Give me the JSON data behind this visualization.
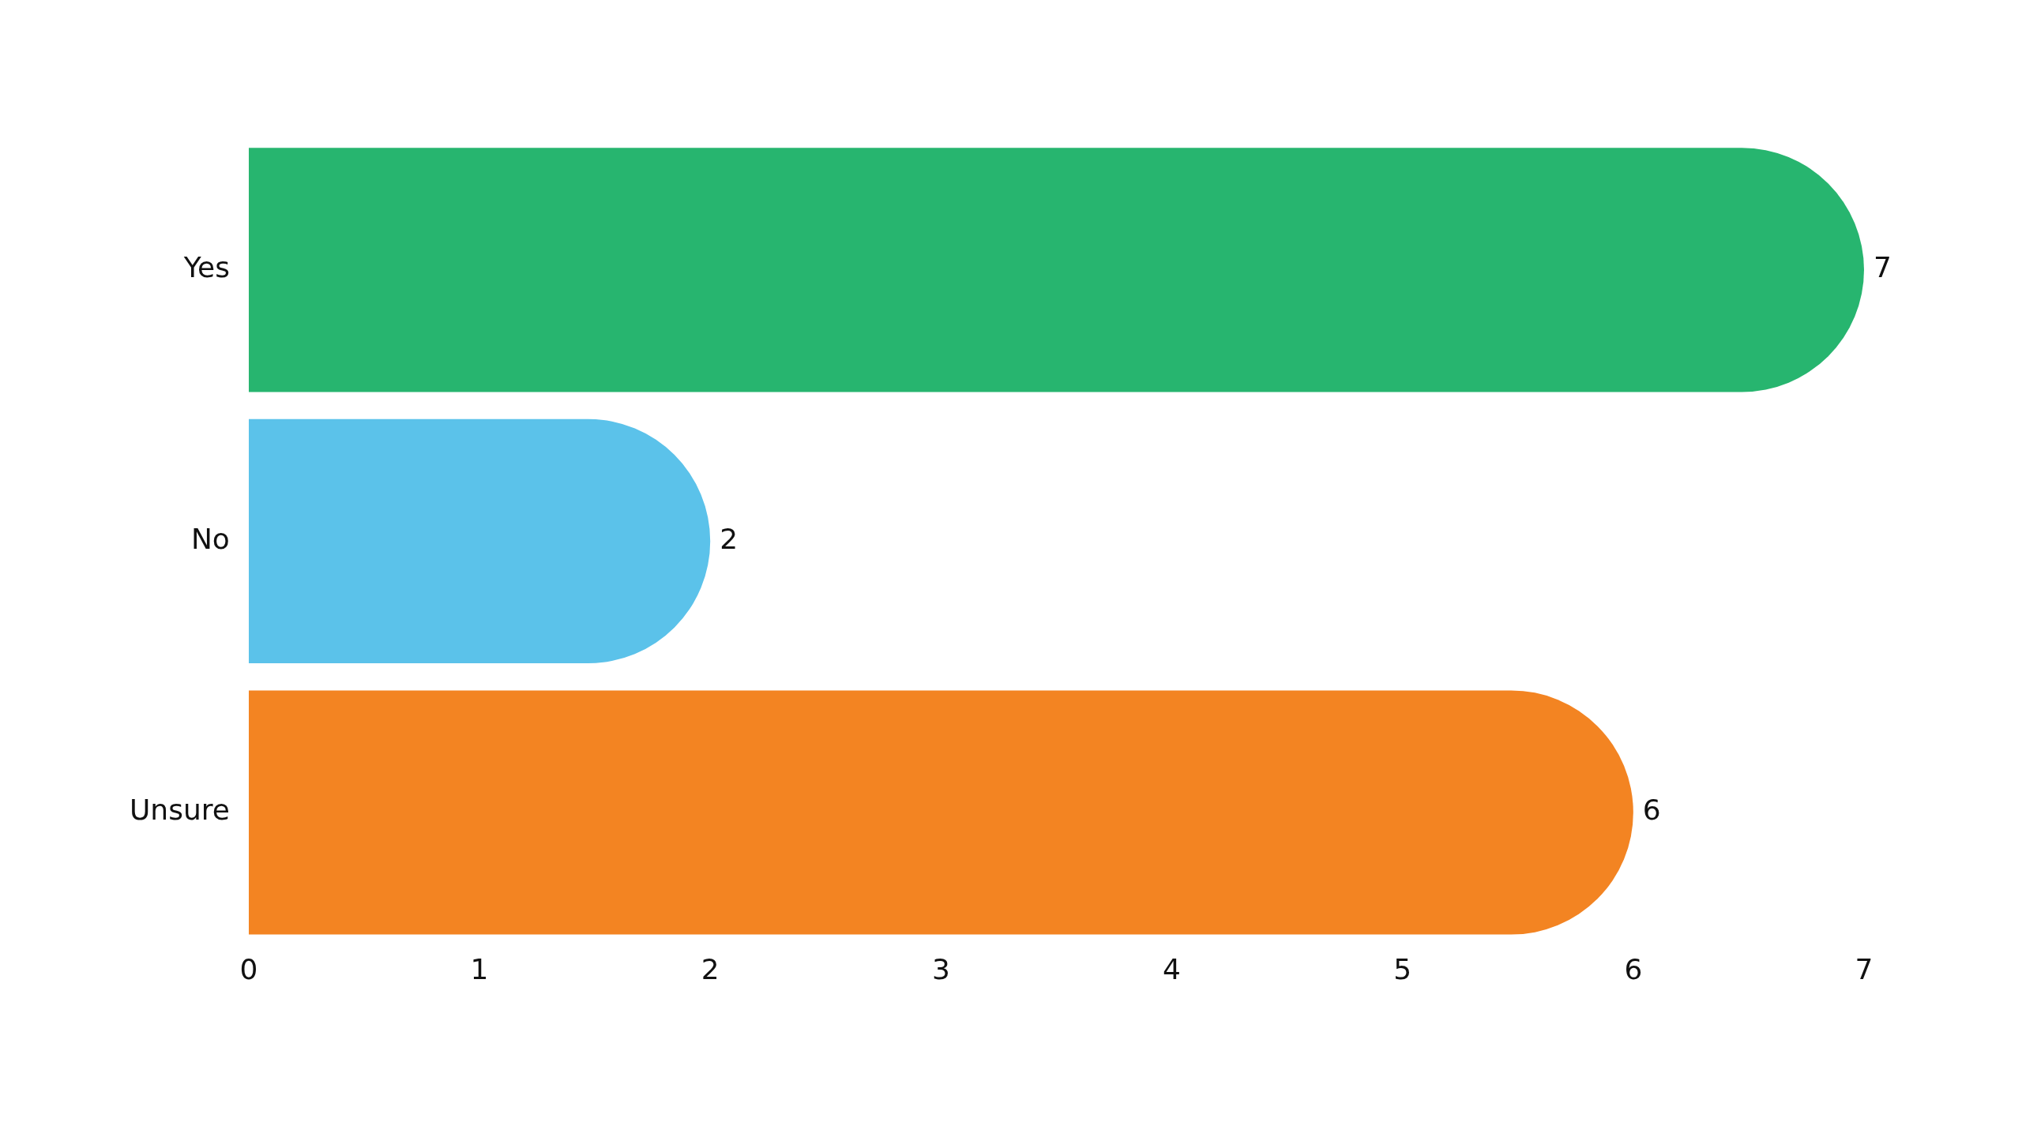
{
  "chart_data": {
    "type": "bar",
    "orientation": "horizontal",
    "categories": [
      "Yes",
      "No",
      "Unsure"
    ],
    "values": [
      7,
      2,
      6
    ],
    "colors": [
      "#27b56f",
      "#5bc2ea",
      "#f38422"
    ],
    "xlim": [
      0,
      7
    ],
    "xticks": [
      0,
      1,
      2,
      3,
      4,
      5,
      6,
      7
    ],
    "grid": false,
    "legend": false,
    "data_labels": true
  }
}
